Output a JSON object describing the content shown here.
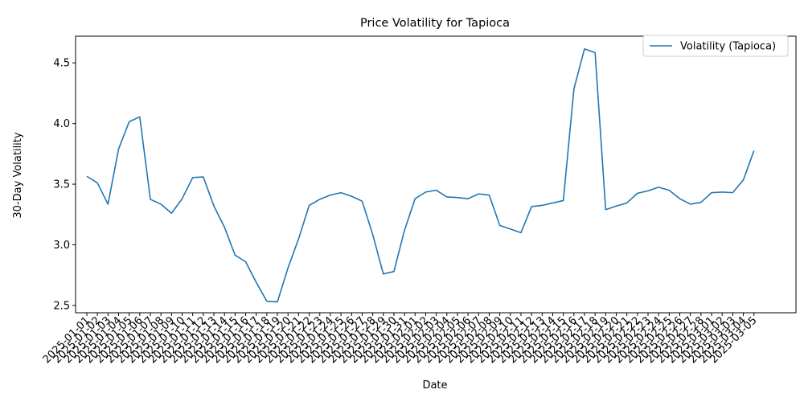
{
  "chart_data": {
    "type": "line",
    "title": "Price Volatility for Tapioca",
    "xlabel": "Date",
    "ylabel": "30-Day Volatility",
    "x": [
      "2025-01-01",
      "2025-01-02",
      "2025-01-03",
      "2025-01-04",
      "2025-01-05",
      "2025-01-06",
      "2025-01-07",
      "2025-01-08",
      "2025-01-09",
      "2025-01-10",
      "2025-01-11",
      "2025-01-12",
      "2025-01-13",
      "2025-01-14",
      "2025-01-15",
      "2025-01-16",
      "2025-01-17",
      "2025-01-18",
      "2025-01-19",
      "2025-01-20",
      "2025-01-21",
      "2025-01-22",
      "2025-01-23",
      "2025-01-24",
      "2025-01-25",
      "2025-01-26",
      "2025-01-27",
      "2025-01-28",
      "2025-01-29",
      "2025-01-30",
      "2025-01-31",
      "2025-02-01",
      "2025-02-02",
      "2025-02-03",
      "2025-02-04",
      "2025-02-05",
      "2025-02-06",
      "2025-02-07",
      "2025-02-08",
      "2025-02-09",
      "2025-02-10",
      "2025-02-11",
      "2025-02-12",
      "2025-02-13",
      "2025-02-14",
      "2025-02-15",
      "2025-02-16",
      "2025-02-17",
      "2025-02-18",
      "2025-02-19",
      "2025-02-20",
      "2025-02-21",
      "2025-02-22",
      "2025-02-23",
      "2025-02-24",
      "2025-02-25",
      "2025-02-26",
      "2025-02-27",
      "2025-02-28",
      "2025-03-01",
      "2025-03-02",
      "2025-03-03",
      "2025-03-04",
      "2025-03-05"
    ],
    "series": [
      {
        "name": "Volatility (Tapioca)",
        "color": "#1f77b4",
        "values": [
          3.565,
          3.51,
          3.335,
          3.79,
          4.015,
          4.055,
          3.375,
          3.335,
          3.26,
          3.38,
          3.555,
          3.56,
          3.32,
          3.145,
          2.915,
          2.86,
          2.69,
          2.535,
          2.53,
          2.81,
          3.05,
          3.325,
          3.375,
          3.41,
          3.43,
          3.4,
          3.36,
          3.085,
          2.76,
          2.78,
          3.12,
          3.38,
          3.435,
          3.45,
          3.395,
          3.39,
          3.38,
          3.42,
          3.41,
          3.16,
          3.13,
          3.1,
          3.315,
          3.325,
          3.345,
          3.365,
          4.285,
          4.615,
          4.585,
          3.29,
          3.32,
          3.345,
          3.425,
          3.445,
          3.475,
          3.45,
          3.38,
          3.335,
          3.35,
          3.43,
          3.435,
          3.43,
          3.535,
          3.775
        ]
      }
    ],
    "ylim": [
      2.44,
      4.72
    ],
    "yticks": [
      "2.5",
      "3.0",
      "3.5",
      "4.0",
      "4.5"
    ],
    "grid": false,
    "legend": "top-right"
  }
}
